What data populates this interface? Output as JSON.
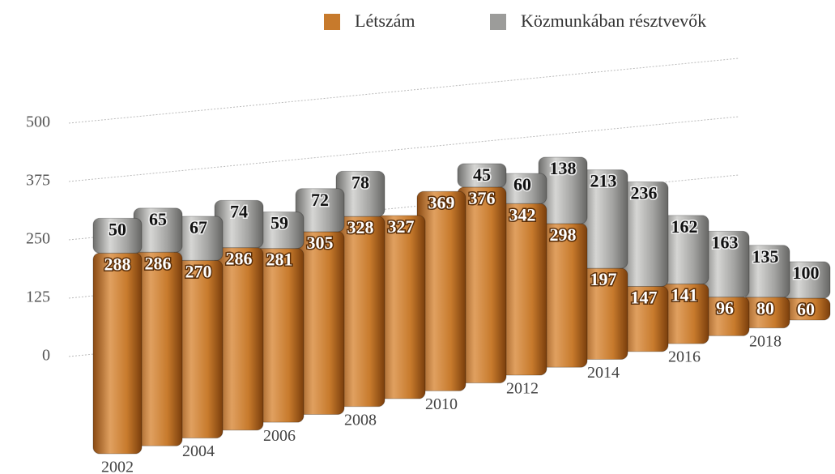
{
  "chart_data": {
    "type": "bar",
    "stacked": true,
    "categories": [
      "2002",
      null,
      "2004",
      null,
      "2006",
      null,
      "2008",
      null,
      "2010",
      null,
      "2012",
      null,
      "2014",
      null,
      "2016",
      null,
      "2018",
      null
    ],
    "series": [
      {
        "name": "Létszám",
        "color": "#c77a2c",
        "values": [
          288,
          286,
          270,
          286,
          281,
          305,
          328,
          327,
          369,
          376,
          342,
          298,
          197,
          147,
          141,
          96,
          80,
          60
        ]
      },
      {
        "name": "Közmunkában résztvevők",
        "color": "#9c9c9a",
        "values": [
          50,
          65,
          67,
          74,
          59,
          72,
          78,
          null,
          null,
          45,
          60,
          138,
          213,
          236,
          162,
          163,
          135,
          100
        ]
      }
    ],
    "ylim": [
      0,
      625
    ],
    "yticks": [
      0,
      125,
      250,
      375,
      500
    ],
    "grid": true,
    "legend": "top"
  }
}
